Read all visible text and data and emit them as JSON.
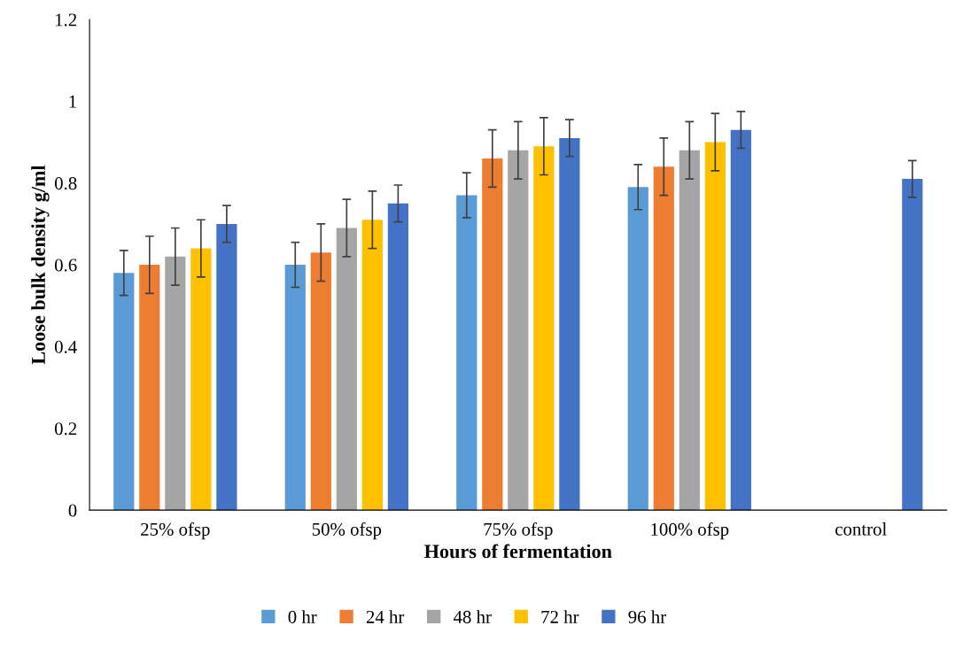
{
  "chart_data": {
    "type": "bar",
    "xlabel": "Hours of fermentation",
    "ylabel": "Loose bulk density g/ml",
    "categories": [
      "25% ofsp",
      "50% ofsp",
      "75% ofsp",
      "100% ofsp",
      "control"
    ],
    "ylim": [
      0,
      1.2
    ],
    "yticks": [
      0,
      0.2,
      0.4,
      0.6,
      0.8,
      1,
      1.2
    ],
    "grid": false,
    "legend": "bottom",
    "series": [
      {
        "name": "0 hr",
        "color": "#5b9bd5",
        "values": [
          0.58,
          0.6,
          0.77,
          0.79,
          null
        ],
        "errors": [
          0.055,
          0.055,
          0.055,
          0.055,
          null
        ]
      },
      {
        "name": "24 hr",
        "color": "#ed7d31",
        "values": [
          0.6,
          0.63,
          0.86,
          0.84,
          null
        ],
        "errors": [
          0.07,
          0.07,
          0.07,
          0.07,
          null
        ]
      },
      {
        "name": "48 hr",
        "color": "#a5a5a5",
        "values": [
          0.62,
          0.69,
          0.88,
          0.88,
          null
        ],
        "errors": [
          0.07,
          0.07,
          0.07,
          0.07,
          null
        ]
      },
      {
        "name": "72 hr",
        "color": "#ffc000",
        "values": [
          0.64,
          0.71,
          0.89,
          0.9,
          null
        ],
        "errors": [
          0.07,
          0.07,
          0.07,
          0.07,
          null
        ]
      },
      {
        "name": "96 hr",
        "color": "#4472c4",
        "values": [
          0.7,
          0.75,
          0.91,
          0.93,
          0.81
        ],
        "errors": [
          0.045,
          0.045,
          0.045,
          0.045,
          0.045
        ]
      }
    ]
  }
}
